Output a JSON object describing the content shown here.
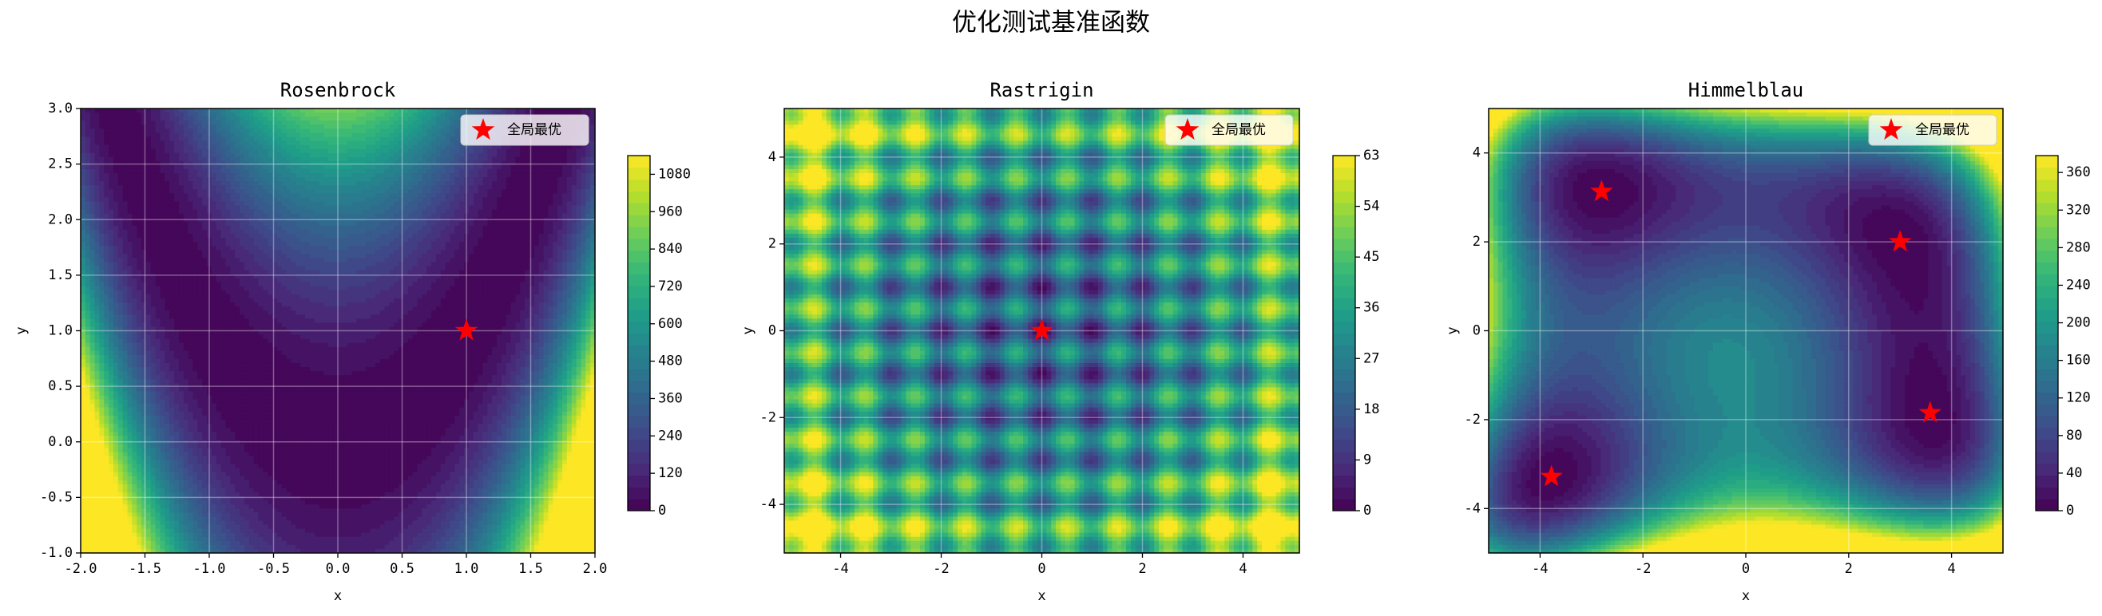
{
  "title": "优化测试基准函数",
  "chart_data": [
    {
      "type": "contour",
      "title": "Rosenbrock",
      "xlabel": "x",
      "ylabel": "y",
      "xlim": [
        -2,
        2
      ],
      "ylim": [
        -1,
        3
      ],
      "xticks": [
        {
          "value": -2,
          "label": "-2.0"
        },
        -1.5,
        {
          "value": -1,
          "label": "-1.0"
        },
        -0.5,
        {
          "value": 0,
          "label": "0.0"
        },
        0.5,
        {
          "value": 1,
          "label": "1.0"
        },
        1.5,
        {
          "value": 2,
          "label": "2.0"
        }
      ],
      "yticks": [
        {
          "value": -1,
          "label": "-1.0"
        },
        -0.5,
        {
          "value": 0,
          "label": "0.0"
        },
        0.5,
        {
          "value": 1,
          "label": "1.0"
        },
        1.5,
        {
          "value": 2,
          "label": "2.0"
        },
        2.5,
        {
          "value": 3,
          "label": "3.0"
        }
      ],
      "grid": true,
      "legend": "upper right",
      "colorbar": {
        "lim": [
          0,
          1140
        ],
        "ticks": [
          0,
          120,
          240,
          360,
          480,
          600,
          720,
          840,
          960,
          1080
        ]
      },
      "series": [
        {
          "name": "全局最优",
          "color": "#ff0000",
          "x": [
            1
          ],
          "y": [
            1
          ]
        }
      ]
    },
    {
      "type": "contour",
      "title": "Rastrigin",
      "xlabel": "x",
      "ylabel": "y",
      "xlim": [
        -5.12,
        5.12
      ],
      "ylim": [
        -5.12,
        5.12
      ],
      "xticks": [
        -4,
        -2,
        0,
        2,
        4
      ],
      "yticks": [
        -4,
        -2,
        0,
        2,
        4
      ],
      "grid": true,
      "legend": "upper right",
      "colorbar": {
        "lim": [
          0,
          63
        ],
        "ticks": [
          0,
          9,
          18,
          27,
          36,
          45,
          54,
          63
        ]
      },
      "series": [
        {
          "name": "全局最优",
          "color": "#ff0000",
          "x": [
            0
          ],
          "y": [
            0
          ]
        }
      ]
    },
    {
      "type": "contour",
      "title": "Himmelblau",
      "xlabel": "x",
      "ylabel": "y",
      "xlim": [
        -5,
        5
      ],
      "ylim": [
        -5,
        5
      ],
      "xticks": [
        -4,
        -2,
        0,
        2,
        4
      ],
      "yticks": [
        -4,
        -2,
        0,
        2,
        4
      ],
      "grid": true,
      "legend": "upper right",
      "colorbar": {
        "lim": [
          0,
          378
        ],
        "ticks": [
          0,
          40,
          80,
          120,
          160,
          200,
          240,
          280,
          320,
          360
        ]
      },
      "series": [
        {
          "name": "全局最优",
          "color": "#ff0000",
          "x": [
            3,
            -2.805,
            -3.779,
            3.584
          ],
          "y": [
            2,
            3.131,
            -3.283,
            -1.848
          ]
        }
      ]
    }
  ]
}
